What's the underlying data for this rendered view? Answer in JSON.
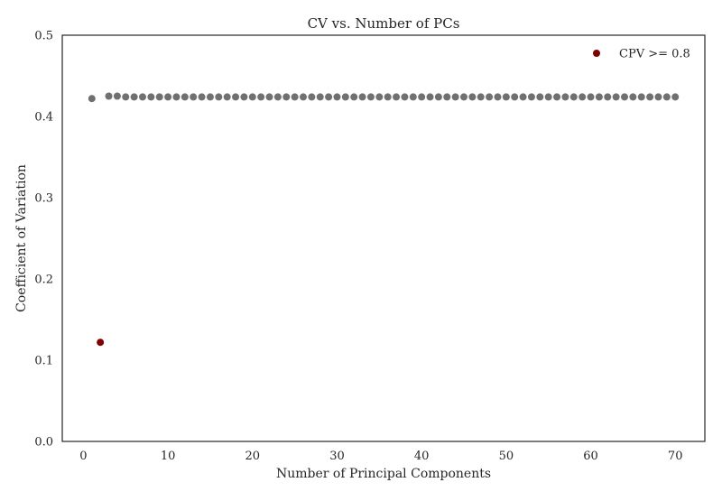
{
  "chart_data": {
    "type": "scatter",
    "title": "CV vs. Number of PCs",
    "xlabel": "Number of Principal Components",
    "ylabel": "Coefficient of Variation",
    "xlim": [
      -2.5,
      73.5
    ],
    "ylim": [
      0.0,
      0.5
    ],
    "xticks": [
      0,
      10,
      20,
      30,
      40,
      50,
      60,
      70
    ],
    "xtick_labels": [
      "0",
      "10",
      "20",
      "30",
      "40",
      "50",
      "60",
      "70"
    ],
    "yticks": [
      0.0,
      0.1,
      0.2,
      0.3,
      0.4,
      0.5
    ],
    "ytick_labels": [
      "0.0",
      "0.1",
      "0.2",
      "0.3",
      "0.4",
      "0.5"
    ],
    "grid": false,
    "legend_position": "top-right",
    "series": [
      {
        "color": "#707070",
        "points": [
          [
            1,
            0.422
          ],
          [
            3,
            0.425
          ],
          [
            4,
            0.425
          ],
          [
            5,
            0.424
          ],
          [
            6,
            0.424
          ],
          [
            7,
            0.424
          ],
          [
            8,
            0.424
          ],
          [
            9,
            0.424
          ],
          [
            10,
            0.424
          ],
          [
            11,
            0.424
          ],
          [
            12,
            0.424
          ],
          [
            13,
            0.424
          ],
          [
            14,
            0.424
          ],
          [
            15,
            0.424
          ],
          [
            16,
            0.424
          ],
          [
            17,
            0.424
          ],
          [
            18,
            0.424
          ],
          [
            19,
            0.424
          ],
          [
            20,
            0.424
          ],
          [
            21,
            0.424
          ],
          [
            22,
            0.424
          ],
          [
            23,
            0.424
          ],
          [
            24,
            0.424
          ],
          [
            25,
            0.424
          ],
          [
            26,
            0.424
          ],
          [
            27,
            0.424
          ],
          [
            28,
            0.424
          ],
          [
            29,
            0.424
          ],
          [
            30,
            0.424
          ],
          [
            31,
            0.424
          ],
          [
            32,
            0.424
          ],
          [
            33,
            0.424
          ],
          [
            34,
            0.424
          ],
          [
            35,
            0.424
          ],
          [
            36,
            0.424
          ],
          [
            37,
            0.424
          ],
          [
            38,
            0.424
          ],
          [
            39,
            0.424
          ],
          [
            40,
            0.424
          ],
          [
            41,
            0.424
          ],
          [
            42,
            0.424
          ],
          [
            43,
            0.424
          ],
          [
            44,
            0.424
          ],
          [
            45,
            0.424
          ],
          [
            46,
            0.424
          ],
          [
            47,
            0.424
          ],
          [
            48,
            0.424
          ],
          [
            49,
            0.424
          ],
          [
            50,
            0.424
          ],
          [
            51,
            0.424
          ],
          [
            52,
            0.424
          ],
          [
            53,
            0.424
          ],
          [
            54,
            0.424
          ],
          [
            55,
            0.424
          ],
          [
            56,
            0.424
          ],
          [
            57,
            0.424
          ],
          [
            58,
            0.424
          ],
          [
            59,
            0.424
          ],
          [
            60,
            0.424
          ],
          [
            61,
            0.424
          ],
          [
            62,
            0.424
          ],
          [
            63,
            0.424
          ],
          [
            64,
            0.424
          ],
          [
            65,
            0.424
          ],
          [
            66,
            0.424
          ],
          [
            67,
            0.424
          ],
          [
            68,
            0.424
          ],
          [
            69,
            0.424
          ],
          [
            70,
            0.424
          ]
        ]
      },
      {
        "name": "CPV >= 0.8",
        "color": "#800000",
        "points": [
          [
            2,
            0.122
          ]
        ]
      }
    ],
    "legend": [
      {
        "label": "CPV >= 0.8",
        "color": "#800000"
      }
    ]
  }
}
